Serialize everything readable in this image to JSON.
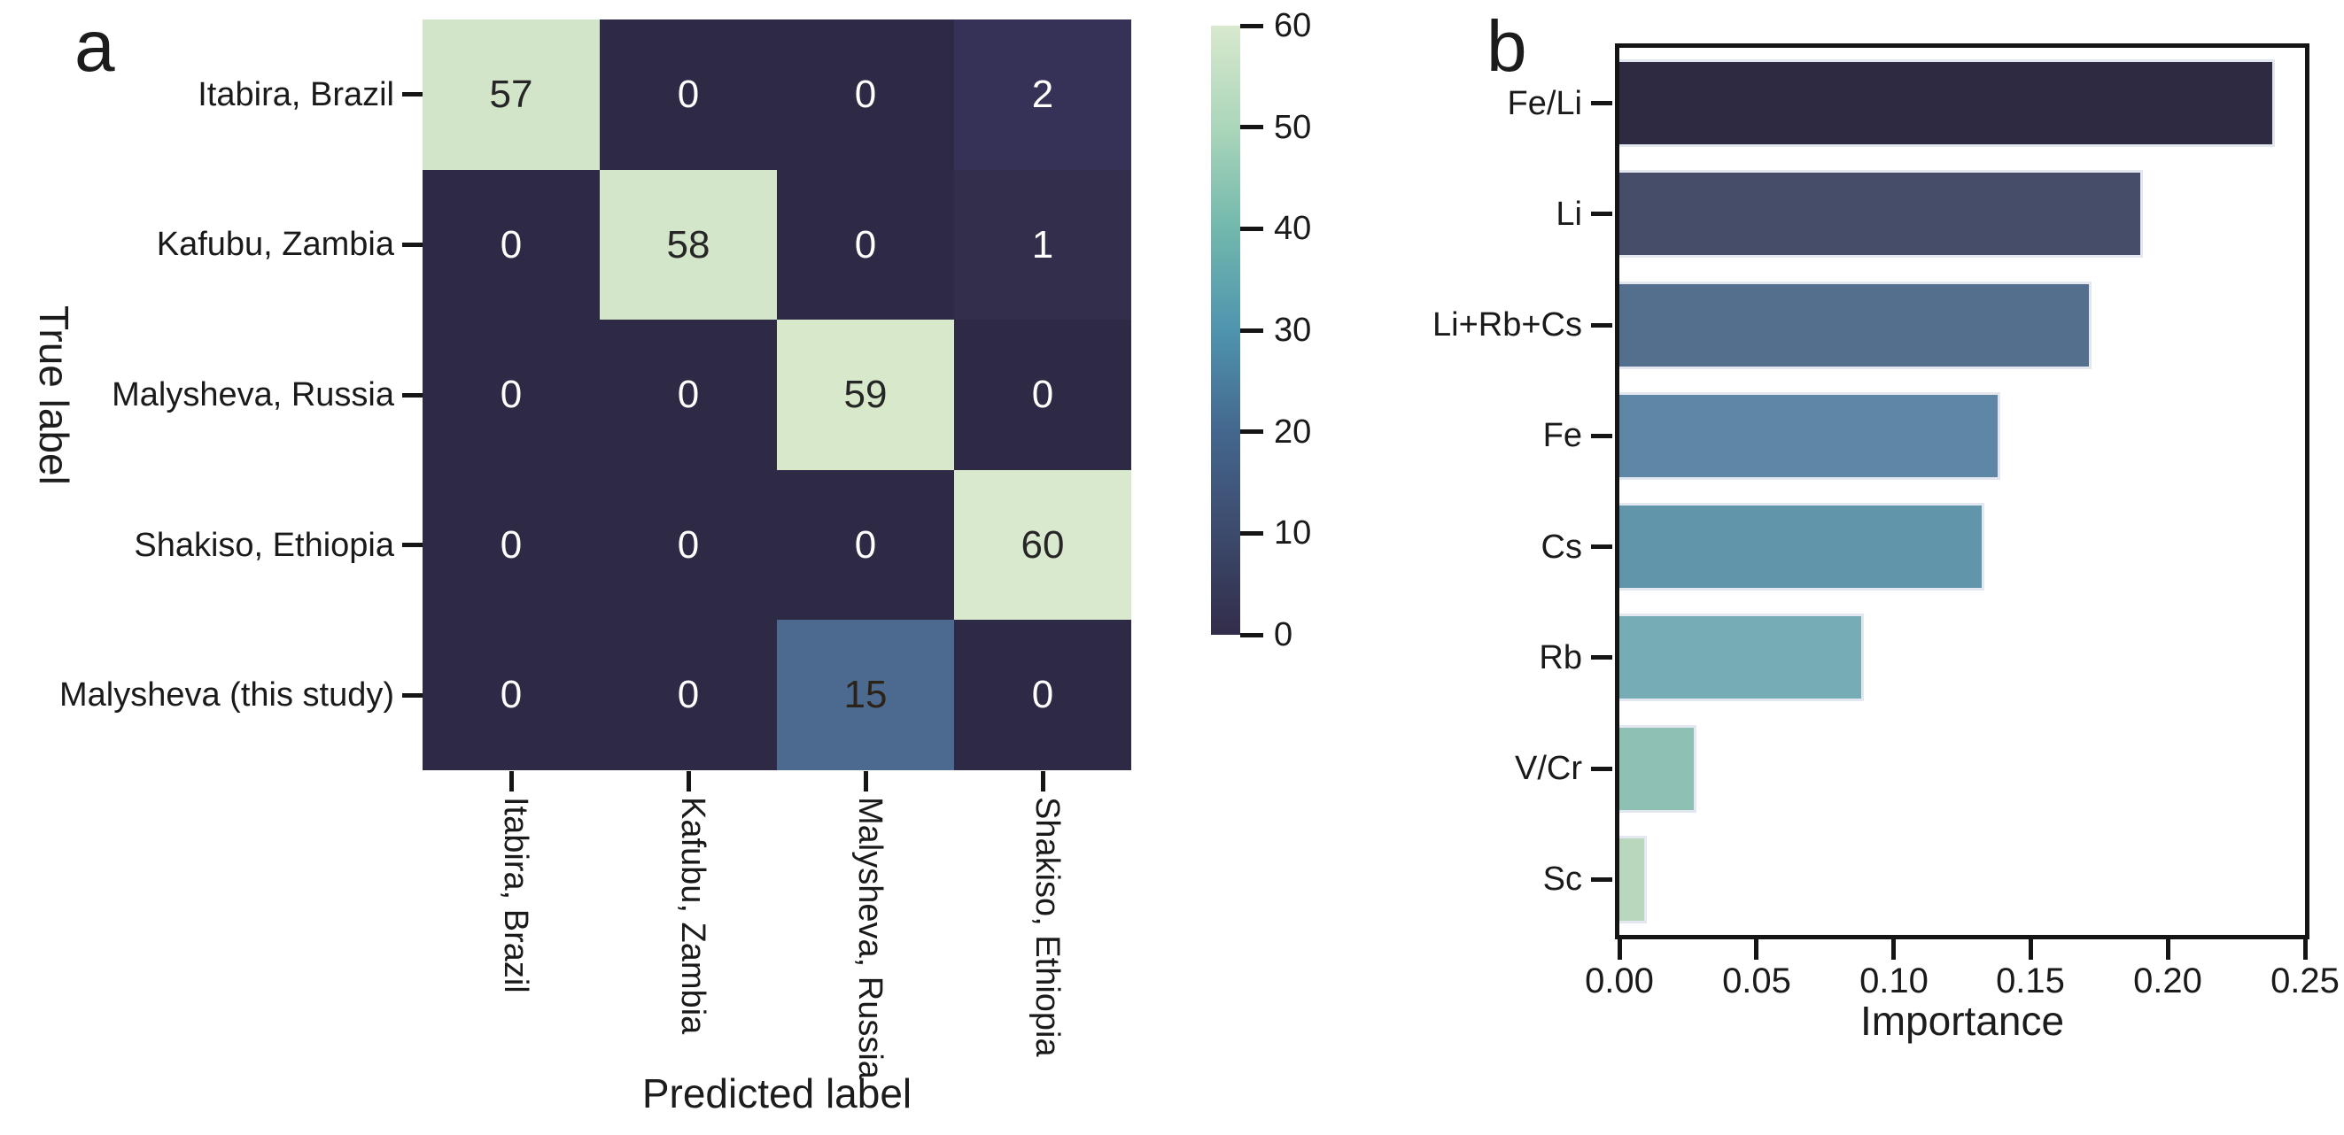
{
  "chart_data": [
    {
      "type": "heatmap",
      "panel_label": "a",
      "ylabel": "True label",
      "xlabel": "Predicted label",
      "row_labels": [
        "Itabira, Brazil",
        "Kafubu, Zambia",
        "Malysheva, Russia",
        "Shakiso, Ethiopia",
        "Malysheva (this study)"
      ],
      "col_labels": [
        "Itabira, Brazil",
        "Kafubu, Zambia",
        "Malysheva, Russia",
        "Shakiso, Ethiopia"
      ],
      "values": [
        [
          57,
          0,
          0,
          2
        ],
        [
          0,
          58,
          0,
          1
        ],
        [
          0,
          0,
          59,
          0
        ],
        [
          0,
          0,
          0,
          60
        ],
        [
          0,
          0,
          15,
          0
        ]
      ],
      "cell_colors": [
        [
          "#d3e5c8",
          "#2e2a45",
          "#2e2a45",
          "#363156"
        ],
        [
          "#2e2a45",
          "#d4e6c9",
          "#2e2a45",
          "#322e4b"
        ],
        [
          "#2e2a45",
          "#2e2a45",
          "#d7e8cb",
          "#2e2a45"
        ],
        [
          "#2e2a45",
          "#2e2a45",
          "#2e2a45",
          "#d9e9ce"
        ],
        [
          "#2e2a45",
          "#2e2a45",
          "#4c6a8f",
          "#2e2a45"
        ]
      ],
      "cell_text_colors": [
        [
          "#262626",
          "#ffffff",
          "#ffffff",
          "#ffffff"
        ],
        [
          "#ffffff",
          "#262626",
          "#ffffff",
          "#ffffff"
        ],
        [
          "#ffffff",
          "#ffffff",
          "#262626",
          "#ffffff"
        ],
        [
          "#ffffff",
          "#ffffff",
          "#ffffff",
          "#262626"
        ],
        [
          "#ffffff",
          "#ffffff",
          "#2b2318",
          "#ffffff"
        ]
      ],
      "colorbar": {
        "min": 0,
        "max": 60,
        "ticks": [
          0,
          10,
          20,
          30,
          40,
          50,
          60
        ],
        "gradient_stops_low_to_high": [
          "#322d4a",
          "#3c4a6c",
          "#44678e",
          "#4f94ae",
          "#72b8ad",
          "#abd6ba",
          "#d8e9ce"
        ]
      }
    },
    {
      "type": "bar",
      "panel_label": "b",
      "orientation": "horizontal",
      "xlabel": "Importance",
      "xlim": [
        0,
        0.25
      ],
      "x_tick_labels": [
        "0.00",
        "0.05",
        "0.10",
        "0.15",
        "0.20",
        "0.25"
      ],
      "categories": [
        "Fe/Li",
        "Li",
        "Li+Rb+Cs",
        "Fe",
        "Cs",
        "Rb",
        "V/Cr",
        "Sc"
      ],
      "values": [
        0.239,
        0.191,
        0.172,
        0.139,
        0.133,
        0.089,
        0.028,
        0.01
      ],
      "bar_colors": [
        "#2e2a42",
        "#464d68",
        "#546e8e",
        "#5e87a6",
        "#6095aa",
        "#76acb4",
        "#8ec1b4",
        "#b9d7bd"
      ],
      "spine_color": "#151515",
      "bar_edge_color": "#e3e7ef"
    }
  ]
}
